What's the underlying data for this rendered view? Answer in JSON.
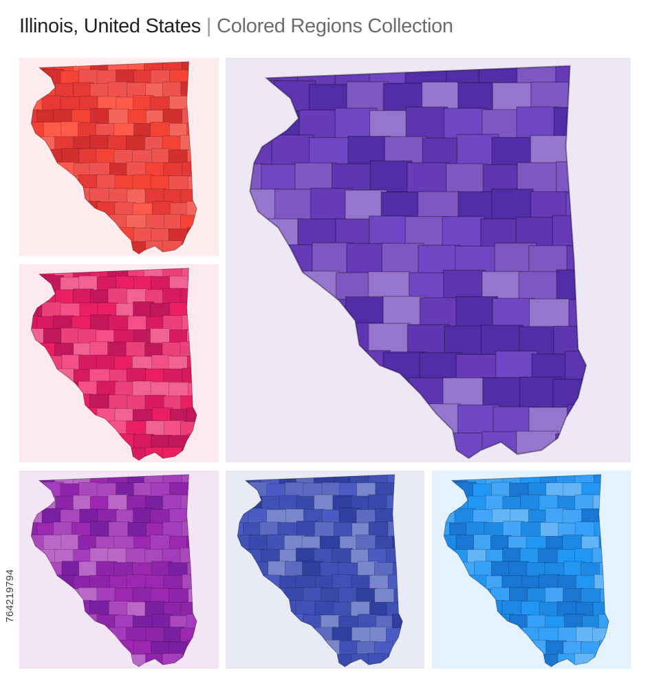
{
  "title": {
    "main": "Illinois, United States",
    "separator": "|",
    "subtitle": "Colored Regions Collection"
  },
  "stock_id": "764219794",
  "panels": [
    {
      "name": "red",
      "background": "#fdebee",
      "colors": [
        "#f44336",
        "#e53935",
        "#ef5350",
        "#f4665c",
        "#d32f2f",
        "#ff5a4a"
      ]
    },
    {
      "name": "pink",
      "background": "#fce8ef",
      "colors": [
        "#e91e63",
        "#ec407a",
        "#f06292",
        "#d81b60",
        "#f44f86",
        "#c2185b"
      ]
    },
    {
      "name": "deep-purple",
      "background": "#ede7f6",
      "colors": [
        "#673ab7",
        "#7e57c2",
        "#5e35b1",
        "#9575cd",
        "#512da8",
        "#6f47c4"
      ]
    },
    {
      "name": "purple",
      "background": "#f3e5f5",
      "colors": [
        "#9c27b0",
        "#ab47bc",
        "#8e24aa",
        "#ba68c8",
        "#7b1fa2",
        "#a53bbd"
      ]
    },
    {
      "name": "indigo",
      "background": "#e8eaf6",
      "colors": [
        "#3f51b5",
        "#5c6bc0",
        "#3949ab",
        "#7986cb",
        "#303f9f",
        "#4a5cc4"
      ]
    },
    {
      "name": "blue",
      "background": "#e3f2fd",
      "colors": [
        "#2196f3",
        "#42a5f5",
        "#1e88e5",
        "#64b5f6",
        "#1976d2",
        "#35a0f7"
      ]
    }
  ]
}
